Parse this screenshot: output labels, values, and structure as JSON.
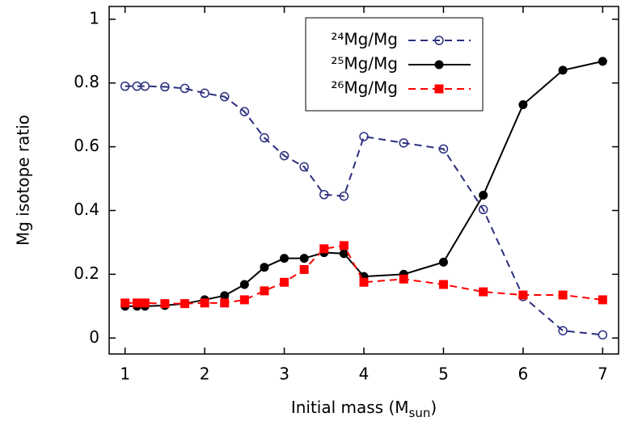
{
  "chart_data": {
    "type": "line",
    "xlabel": [
      "Initial mass (M",
      "sun",
      ")"
    ],
    "ylabel": "Mg isotope ratio",
    "x": [
      1,
      1.15,
      1.25,
      1.5,
      1.75,
      2,
      2.25,
      2.5,
      2.75,
      3,
      3.25,
      3.5,
      3.75,
      4,
      4.5,
      5,
      5.5,
      6,
      6.5,
      7
    ],
    "series": [
      {
        "name": "²⁴Mg/Mg",
        "color": "#2b2f7e",
        "dash": true,
        "marker": "open-circle",
        "values": [
          0.79,
          0.79,
          0.79,
          0.788,
          0.783,
          0.768,
          0.757,
          0.71,
          0.628,
          0.572,
          0.537,
          0.45,
          0.445,
          0.632,
          0.612,
          0.593,
          0.403,
          0.13,
          0.023,
          0.01
        ]
      },
      {
        "name": "²⁵Mg/Mg",
        "color": "#000000",
        "dash": false,
        "marker": "filled-circle",
        "values": [
          0.1,
          0.1,
          0.1,
          0.102,
          0.108,
          0.12,
          0.133,
          0.168,
          0.222,
          0.25,
          0.25,
          0.268,
          0.265,
          0.193,
          0.2,
          0.238,
          0.448,
          0.732,
          0.84,
          0.868
        ]
      },
      {
        "name": "²⁶Mg/Mg",
        "color": "#ff0000",
        "dash": true,
        "marker": "square",
        "values": [
          0.11,
          0.11,
          0.11,
          0.108,
          0.108,
          0.11,
          0.11,
          0.12,
          0.148,
          0.175,
          0.215,
          0.28,
          0.29,
          0.175,
          0.185,
          0.168,
          0.145,
          0.135,
          0.135,
          0.12
        ]
      }
    ],
    "xlim": [
      0.8,
      7.2
    ],
    "ylim": [
      -0.05,
      1.04
    ],
    "xticks": [
      1,
      2,
      3,
      4,
      5,
      6,
      7
    ],
    "yticks": [
      0,
      0.2,
      0.4,
      0.6,
      0.8,
      1
    ],
    "legend": "top-right"
  }
}
